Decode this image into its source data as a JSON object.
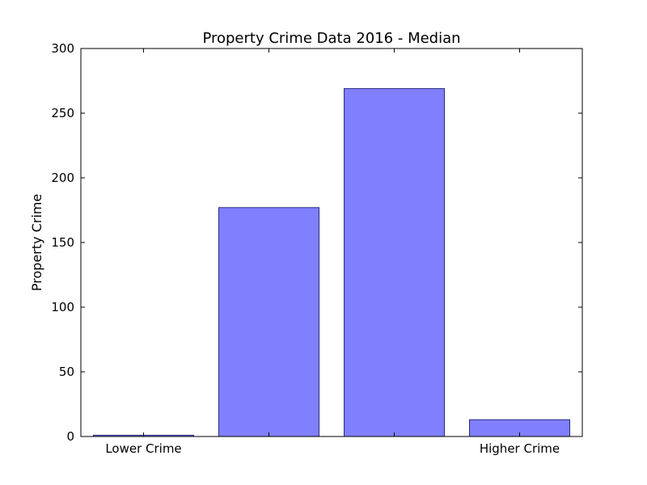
{
  "chart_data": {
    "type": "bar",
    "title": "Property Crime Data 2016 - Median",
    "xlabel": "",
    "ylabel": "Property Crime",
    "ylim": [
      0,
      300
    ],
    "yticks": [
      0,
      50,
      100,
      150,
      200,
      250,
      300
    ],
    "categories": [
      "Lower Crime",
      "",
      "",
      "Higher Crime"
    ],
    "values": [
      1,
      177,
      269,
      13
    ],
    "bar_color": "#8080ff",
    "bar_edge_color": "#2a2a7a",
    "grid": false,
    "legend": "none"
  }
}
